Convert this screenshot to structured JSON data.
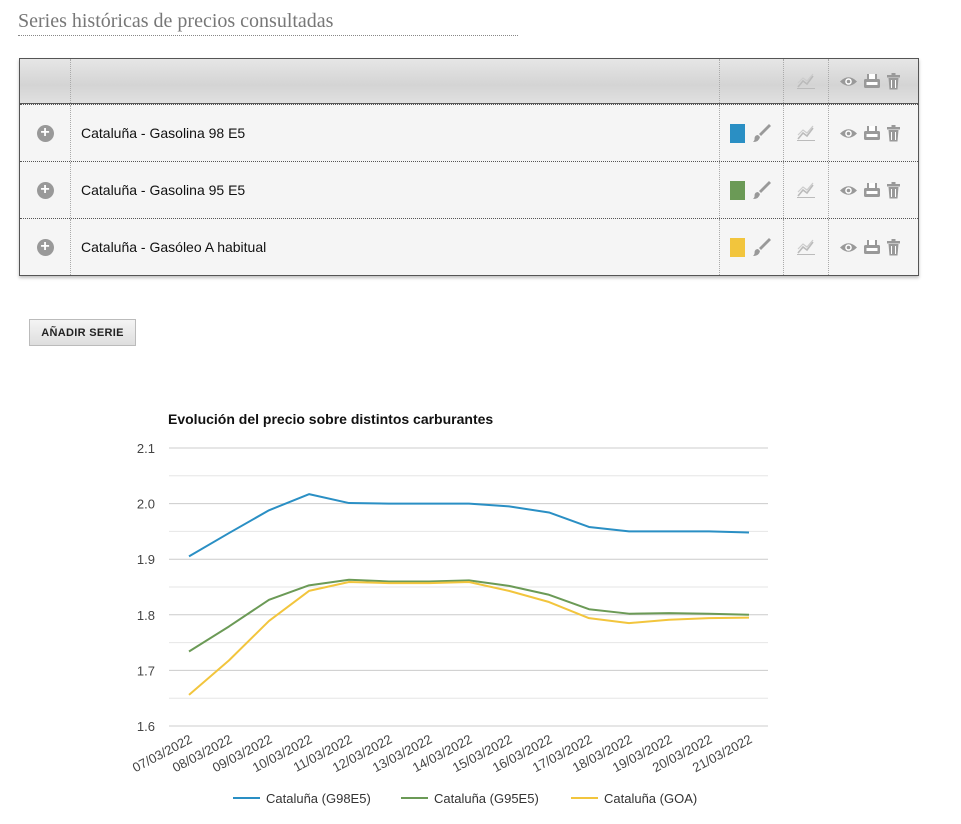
{
  "header": {
    "title": "Series históricas de precios consultadas"
  },
  "table": {
    "rows": [
      {
        "name": "Cataluña - Gasolina 98 E5",
        "color": "#2a8fc4"
      },
      {
        "name": "Cataluña - Gasolina 95 E5",
        "color": "#6b9a56"
      },
      {
        "name": "Cataluña - Gasóleo A habitual",
        "color": "#f2c53d"
      }
    ],
    "icons": {
      "expand": "plus-circle-icon",
      "edit": "brush-icon",
      "compare": "chart-compare-icon",
      "view": "eye-icon",
      "save": "save-icon",
      "delete": "trash-icon"
    }
  },
  "buttons": {
    "add_series": "AÑADIR SERIE"
  },
  "chart_data": {
    "type": "line",
    "title": "Evolución del precio sobre distintos carburantes",
    "x": [
      "07/03/2022",
      "08/03/2022",
      "09/03/2022",
      "10/03/2022",
      "11/03/2022",
      "12/03/2022",
      "13/03/2022",
      "14/03/2022",
      "15/03/2022",
      "16/03/2022",
      "17/03/2022",
      "18/03/2022",
      "19/03/2022",
      "20/03/2022",
      "21/03/2022"
    ],
    "ylim": [
      1.6,
      2.1
    ],
    "yticks": [
      "1.6",
      "1.7",
      "1.8",
      "1.9",
      "2.0",
      "2.1"
    ],
    "grid": true,
    "legend": "bottom",
    "series": [
      {
        "name": "Cataluña (G98E5)",
        "color": "#2a8fc4",
        "values": [
          1.905,
          1.947,
          1.988,
          2.017,
          2.001,
          2.0,
          2.0,
          2.0,
          1.995,
          1.984,
          1.958,
          1.95,
          1.95,
          1.95,
          1.948
        ]
      },
      {
        "name": "Cataluña (G95E5)",
        "color": "#6b9a56",
        "values": [
          1.734,
          1.779,
          1.827,
          1.853,
          1.863,
          1.86,
          1.86,
          1.862,
          1.852,
          1.836,
          1.81,
          1.802,
          1.803,
          1.802,
          1.8
        ]
      },
      {
        "name": "Cataluña (GOA)",
        "color": "#f2c53d",
        "values": [
          1.656,
          1.718,
          1.789,
          1.843,
          1.859,
          1.857,
          1.857,
          1.859,
          1.843,
          1.823,
          1.794,
          1.785,
          1.791,
          1.794,
          1.795
        ]
      }
    ]
  }
}
